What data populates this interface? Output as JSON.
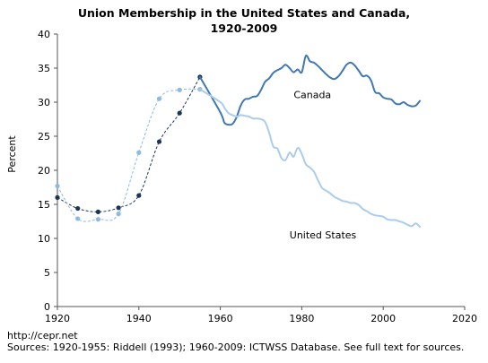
{
  "footer": {
    "url": "http://cepr.net",
    "sources": "Sources: 1920-1955: Riddell (1993); 1960-2009: ICTWSS Database. See full text for sources."
  },
  "colors": {
    "canada": "#3f78b2",
    "us": "#a9cdea",
    "canada_early": "#1b3556",
    "us_early": "#8db9e2",
    "axis": "#555555"
  },
  "chart_data": {
    "type": "line",
    "title_line1": "Union Membership in the United States and Canada,",
    "title_line2": "1920-2009",
    "xlabel": "",
    "ylabel": "Percent",
    "xlim": [
      1920,
      2020
    ],
    "ylim": [
      0,
      40
    ],
    "x_ticks": [
      1920,
      1940,
      1960,
      1980,
      2000,
      2020
    ],
    "y_ticks": [
      0,
      5,
      10,
      15,
      20,
      25,
      30,
      35,
      40
    ],
    "grid": false,
    "series": [
      {
        "name": "Canada",
        "style": "dashed-markers",
        "x": [
          1920,
          1925,
          1930,
          1935,
          1940,
          1945,
          1950,
          1955
        ],
        "y": [
          16.0,
          14.4,
          13.9,
          14.5,
          16.3,
          24.2,
          28.4,
          33.7
        ]
      },
      {
        "name": "United States",
        "style": "dashed-markers",
        "x": [
          1920,
          1925,
          1930,
          1935,
          1940,
          1945,
          1950,
          1955
        ],
        "y": [
          17.7,
          12.9,
          12.8,
          13.6,
          22.6,
          30.5,
          31.8,
          31.9
        ]
      },
      {
        "name": "Canada",
        "style": "solid",
        "x": [
          1955,
          1960,
          1961,
          1962,
          1963,
          1964,
          1965,
          1966,
          1967,
          1968,
          1969,
          1970,
          1971,
          1972,
          1973,
          1974,
          1975,
          1976,
          1977,
          1978,
          1979,
          1980,
          1981,
          1982,
          1983,
          1984,
          1985,
          1986,
          1987,
          1988,
          1989,
          1990,
          1991,
          1992,
          1993,
          1994,
          1995,
          1996,
          1997,
          1998,
          1999,
          2000,
          2001,
          2002,
          2003,
          2004,
          2005,
          2006,
          2007,
          2008,
          2009
        ],
        "y": [
          33.7,
          28.5,
          27.0,
          26.7,
          26.8,
          27.8,
          29.5,
          30.4,
          30.5,
          30.8,
          30.9,
          31.8,
          33.0,
          33.5,
          34.3,
          34.7,
          35.0,
          35.5,
          35.0,
          34.4,
          34.8,
          34.4,
          36.8,
          36.0,
          35.8,
          35.3,
          34.7,
          34.1,
          33.6,
          33.4,
          33.8,
          34.6,
          35.5,
          35.8,
          35.4,
          34.6,
          33.8,
          33.9,
          33.2,
          31.5,
          31.3,
          30.7,
          30.5,
          30.4,
          29.8,
          29.7,
          30.0,
          29.6,
          29.4,
          29.5,
          30.2
        ]
      },
      {
        "name": "United States",
        "style": "solid",
        "x": [
          1955,
          1960,
          1961,
          1962,
          1963,
          1964,
          1965,
          1966,
          1967,
          1968,
          1969,
          1970,
          1971,
          1972,
          1973,
          1974,
          1975,
          1976,
          1977,
          1978,
          1979,
          1980,
          1981,
          1982,
          1983,
          1984,
          1985,
          1986,
          1987,
          1988,
          1989,
          1990,
          1991,
          1992,
          1993,
          1994,
          1995,
          1996,
          1997,
          1998,
          1999,
          2000,
          2001,
          2002,
          2003,
          2004,
          2005,
          2006,
          2007,
          2008,
          2009
        ],
        "y": [
          31.9,
          30.0,
          29.2,
          28.4,
          28.1,
          27.9,
          28.1,
          28.0,
          27.9,
          27.6,
          27.6,
          27.5,
          27.1,
          25.5,
          23.5,
          23.2,
          21.8,
          21.5,
          22.6,
          22.0,
          23.3,
          22.4,
          20.9,
          20.4,
          19.8,
          18.5,
          17.4,
          17.0,
          16.6,
          16.1,
          15.8,
          15.5,
          15.4,
          15.2,
          15.2,
          14.9,
          14.3,
          14.0,
          13.6,
          13.4,
          13.3,
          13.2,
          12.8,
          12.7,
          12.7,
          12.5,
          12.3,
          12.0,
          11.8,
          12.2,
          11.7
        ]
      }
    ],
    "annotations": [
      {
        "text": "Canada",
        "x": 1978,
        "y": 30.6
      },
      {
        "text": "United States",
        "x": 1977,
        "y": 10.0
      }
    ]
  }
}
